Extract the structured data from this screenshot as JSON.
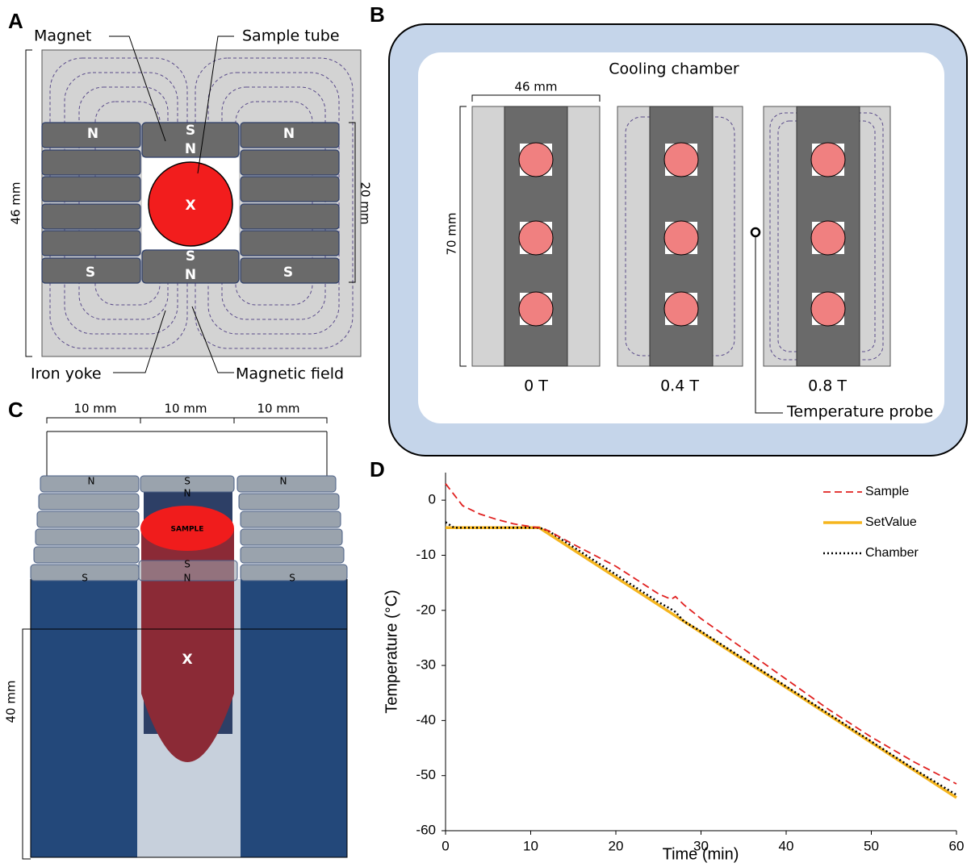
{
  "panel_a": {
    "letter": "A",
    "magnet": "Magnet",
    "sample_tube": "Sample tube",
    "width_dim": "46 mm",
    "gap_dim": "20 mm",
    "poles": [
      "N",
      "N",
      "S",
      "S",
      "S",
      "N",
      "S",
      "N"
    ],
    "center_mark": "X",
    "iron_yoke": "Iron yoke",
    "magnetic_field": "Magnetic field"
  },
  "panel_b": {
    "letter": "B",
    "title": "Cooling chamber",
    "width_dim": "46 mm",
    "height_dim": "70 mm",
    "fields": [
      "0 T",
      "0.4 T",
      "0.8 T"
    ],
    "probe": "Temperature probe"
  },
  "panel_c": {
    "letter": "C",
    "dims": [
      "10 mm",
      "10 mm",
      "10 mm"
    ],
    "height_dim": "40 mm",
    "top_poles": [
      "N",
      "S",
      "N",
      "N"
    ],
    "bottom_poles": [
      "S",
      "S",
      "N",
      "S"
    ],
    "sample": "SAMPLE",
    "center_mark": "X"
  },
  "chart_data": {
    "type": "line",
    "letter": "D",
    "x_label": "Time (min)",
    "y_label": "Temperature (°C)",
    "x": [
      0,
      1,
      2,
      4,
      6,
      8,
      10,
      11,
      12,
      15,
      20,
      25,
      26.5,
      27,
      28,
      30,
      35,
      40,
      45,
      50,
      55,
      60
    ],
    "series": [
      {
        "name": "Sample",
        "color": "#e0201f",
        "style": "dashed",
        "values": [
          3,
          1,
          -1,
          -2.5,
          -3.5,
          -4.3,
          -4.8,
          -5,
          -5.5,
          -8,
          -12,
          -17,
          -18,
          -17.5,
          -19,
          -21.5,
          -27,
          -32.5,
          -38,
          -43,
          -47.5,
          -51.5
        ]
      },
      {
        "name": "SetValue",
        "color": "#f5b51e",
        "style": "solid",
        "values": [
          -5,
          -5,
          -5,
          -5,
          -5,
          -5,
          -5,
          -5,
          -6,
          -9,
          -14,
          -19,
          -20.5,
          -21,
          -22,
          -24,
          -29,
          -34,
          -39,
          -44,
          -49,
          -54
        ]
      },
      {
        "name": "Chamber",
        "color": "#000000",
        "style": "dotted",
        "values": [
          -4,
          -5,
          -5,
          -5,
          -5,
          -5,
          -5,
          -5,
          -5.5,
          -8.5,
          -13.5,
          -18.5,
          -19.8,
          -20.3,
          -22,
          -23.8,
          -28.8,
          -33.8,
          -38.8,
          -43.8,
          -48.8,
          -53.5
        ]
      }
    ],
    "xlim": [
      0,
      60
    ],
    "xticks": [
      0,
      10,
      20,
      30,
      40,
      50,
      60
    ],
    "ylim": [
      -60,
      5
    ],
    "yticks": [
      0,
      -10,
      -20,
      -30,
      -40,
      -50,
      -60
    ],
    "legend": "upper right",
    "grid": false
  }
}
